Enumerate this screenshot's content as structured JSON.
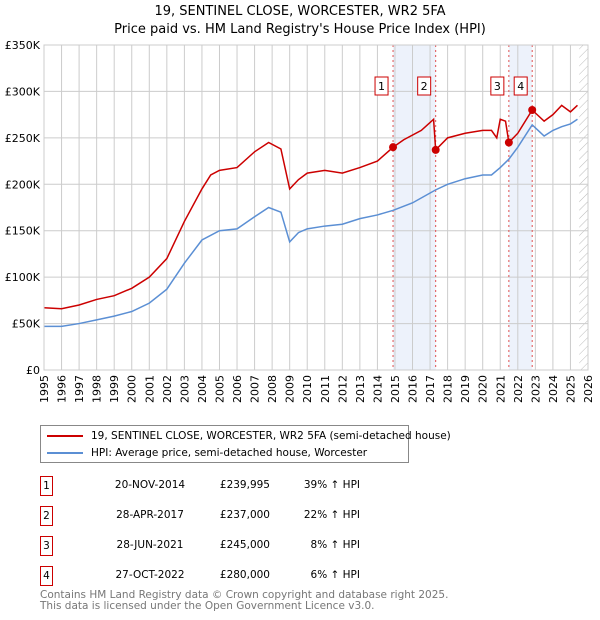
{
  "chart_data": {
    "type": "line",
    "title": "19, SENTINEL CLOSE, WORCESTER, WR2 5FA",
    "subtitle": "Price paid vs. HM Land Registry's House Price Index (HPI)",
    "xlim": [
      1995,
      2026
    ],
    "ylim": [
      0,
      350000
    ],
    "y_ticks": [
      "£0",
      "£50K",
      "£100K",
      "£150K",
      "£200K",
      "£250K",
      "£300K",
      "£350K"
    ],
    "x_ticks": [
      "1995",
      "1996",
      "1997",
      "1998",
      "1999",
      "2000",
      "2001",
      "2002",
      "2003",
      "2004",
      "2005",
      "2006",
      "2007",
      "2008",
      "2009",
      "2010",
      "2011",
      "2012",
      "2013",
      "2014",
      "2015",
      "2016",
      "2017",
      "2018",
      "2019",
      "2020",
      "2021",
      "2022",
      "2023",
      "2024",
      "2025",
      "2026"
    ],
    "grid": true,
    "series": [
      {
        "name": "19, SENTINEL CLOSE, WORCESTER, WR2 5FA (semi-detached house)",
        "color": "#cc0000",
        "x": [
          1995,
          1996,
          1997,
          1998,
          1999,
          2000,
          2001,
          2002,
          2003,
          2004,
          2004.5,
          2005,
          2006,
          2007,
          2007.8,
          2008.5,
          2009,
          2009.5,
          2010,
          2011,
          2012,
          2013,
          2014,
          2014.9,
          2015.5,
          2016.5,
          2017.2,
          2017.32,
          2018,
          2019,
          2020,
          2020.5,
          2020.8,
          2021,
          2021.3,
          2021.49,
          2022,
          2022.82,
          2023.5,
          2024,
          2024.5,
          2025,
          2025.4
        ],
        "y": [
          67000,
          66000,
          70000,
          76000,
          80000,
          88000,
          100000,
          120000,
          160000,
          195000,
          210000,
          215000,
          218000,
          235000,
          245000,
          238000,
          195000,
          205000,
          212000,
          215000,
          212000,
          218000,
          225000,
          239995,
          248000,
          258000,
          270000,
          237000,
          250000,
          255000,
          258000,
          258000,
          250000,
          270000,
          268000,
          245000,
          255000,
          280000,
          268000,
          275000,
          285000,
          278000,
          285000
        ]
      },
      {
        "name": "HPI: Average price, semi-detached house, Worcester",
        "color": "#5b8fd4",
        "x": [
          1995,
          1996,
          1997,
          1998,
          1999,
          2000,
          2001,
          2002,
          2003,
          2004,
          2005,
          2006,
          2007,
          2007.8,
          2008.5,
          2009,
          2009.5,
          2010,
          2011,
          2012,
          2013,
          2014,
          2014.9,
          2016,
          2017.32,
          2018,
          2019,
          2020,
          2020.5,
          2021,
          2021.49,
          2022,
          2022.82,
          2023.5,
          2024,
          2024.5,
          2025,
          2025.4
        ],
        "y": [
          47000,
          47000,
          50000,
          54000,
          58000,
          63000,
          72000,
          87000,
          115000,
          140000,
          150000,
          152000,
          165000,
          175000,
          170000,
          138000,
          148000,
          152000,
          155000,
          157000,
          163000,
          167000,
          172000,
          180000,
          194000,
          200000,
          206000,
          210000,
          210000,
          218000,
          227000,
          240000,
          264000,
          252000,
          258000,
          262000,
          265000,
          270000
        ]
      }
    ],
    "sales": [
      {
        "label": "1",
        "x": 2014.89,
        "y": 239995,
        "date": "20-NOV-2014",
        "price": "£239,995",
        "hpi": "39% ↑ HPI"
      },
      {
        "label": "2",
        "x": 2017.32,
        "y": 237000,
        "date": "28-APR-2017",
        "price": "£237,000",
        "hpi": "22% ↑ HPI"
      },
      {
        "label": "3",
        "x": 2021.49,
        "y": 245000,
        "date": "28-JUN-2021",
        "price": "£245,000",
        "hpi": "8% ↑ HPI"
      },
      {
        "label": "4",
        "x": 2022.82,
        "y": 280000,
        "date": "27-OCT-2022",
        "price": "£280,000",
        "hpi": "6% ↑ HPI"
      }
    ],
    "shaded_ranges": [
      [
        2014.89,
        2017.32
      ],
      [
        2021.49,
        2022.82
      ]
    ],
    "forecast_from": 2025.5
  },
  "footer": {
    "line1": "Contains HM Land Registry data © Crown copyright and database right 2025.",
    "line2": "This data is licensed under the Open Government Licence v3.0."
  }
}
